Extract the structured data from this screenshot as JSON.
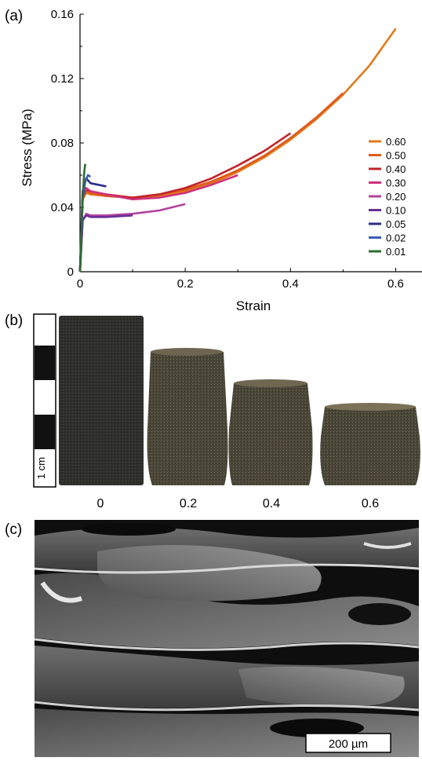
{
  "panels": {
    "a_label": "(a)",
    "b_label": "(b)",
    "c_label": "(c)"
  },
  "chart_data": {
    "type": "line",
    "xlabel": "Strain",
    "ylabel": "Stress (MPa)",
    "xlim": [
      0,
      0.65
    ],
    "ylim": [
      0,
      0.16
    ],
    "x_ticks": [
      0,
      0.2,
      0.4,
      0.6
    ],
    "x_tick_labels": [
      "0",
      "0.2",
      "0.4",
      "0.6"
    ],
    "y_ticks": [
      0,
      0.04,
      0.08,
      0.12,
      0.16
    ],
    "y_tick_labels": [
      "0",
      "0.04",
      "0.08",
      "0.12",
      "0.16"
    ],
    "grid": false,
    "legend_position": "right",
    "series": [
      {
        "name": "0.60",
        "color": "#e07b1a",
        "x": [
          0,
          0.005,
          0.012,
          0.02,
          0.05,
          0.1,
          0.15,
          0.2,
          0.25,
          0.3,
          0.35,
          0.4,
          0.45,
          0.5,
          0.55,
          0.6
        ],
        "y": [
          0,
          0.045,
          0.049,
          0.048,
          0.047,
          0.046,
          0.047,
          0.05,
          0.055,
          0.062,
          0.071,
          0.082,
          0.095,
          0.11,
          0.128,
          0.151
        ]
      },
      {
        "name": "0.50",
        "color": "#e05a1c",
        "x": [
          0,
          0.005,
          0.012,
          0.02,
          0.05,
          0.1,
          0.15,
          0.2,
          0.25,
          0.3,
          0.35,
          0.4,
          0.45,
          0.5
        ],
        "y": [
          0,
          0.046,
          0.05,
          0.049,
          0.047,
          0.046,
          0.048,
          0.051,
          0.056,
          0.063,
          0.072,
          0.083,
          0.096,
          0.111
        ]
      },
      {
        "name": "0.40",
        "color": "#c0242a",
        "x": [
          0,
          0.005,
          0.012,
          0.02,
          0.05,
          0.1,
          0.15,
          0.2,
          0.25,
          0.3,
          0.35,
          0.4
        ],
        "y": [
          0,
          0.047,
          0.051,
          0.05,
          0.048,
          0.046,
          0.048,
          0.052,
          0.058,
          0.066,
          0.075,
          0.086
        ]
      },
      {
        "name": "0.30",
        "color": "#d0317c",
        "x": [
          0,
          0.005,
          0.012,
          0.02,
          0.05,
          0.1,
          0.15,
          0.2,
          0.25,
          0.3
        ],
        "y": [
          0,
          0.048,
          0.052,
          0.05,
          0.048,
          0.045,
          0.046,
          0.049,
          0.054,
          0.06
        ]
      },
      {
        "name": "0.20",
        "color": "#b4449e",
        "x": [
          0,
          0.005,
          0.012,
          0.02,
          0.05,
          0.1,
          0.15,
          0.2
        ],
        "y": [
          0,
          0.032,
          0.036,
          0.035,
          0.035,
          0.036,
          0.038,
          0.042
        ]
      },
      {
        "name": "0.10",
        "color": "#6a2f96",
        "x": [
          0,
          0.005,
          0.012,
          0.02,
          0.05,
          0.1
        ],
        "y": [
          0,
          0.032,
          0.035,
          0.034,
          0.034,
          0.035
        ]
      },
      {
        "name": "0.05",
        "color": "#2a2d8c",
        "x": [
          0,
          0.005,
          0.012,
          0.02,
          0.035,
          0.05
        ],
        "y": [
          0,
          0.05,
          0.058,
          0.055,
          0.054,
          0.053
        ]
      },
      {
        "name": "0.02",
        "color": "#3b5db4",
        "x": [
          0,
          0.005,
          0.01,
          0.015,
          0.02
        ],
        "y": [
          0,
          0.045,
          0.056,
          0.06,
          0.059
        ]
      },
      {
        "name": "0.01",
        "color": "#2f6a32",
        "x": [
          0,
          0.004,
          0.008,
          0.01
        ],
        "y": [
          0,
          0.04,
          0.062,
          0.067
        ]
      }
    ]
  },
  "photo": {
    "scale_label": "1 cm",
    "strain_labels": [
      "0",
      "0.2",
      "0.4",
      "0.6"
    ]
  },
  "sem": {
    "scale_bar_label": "200 µm"
  }
}
